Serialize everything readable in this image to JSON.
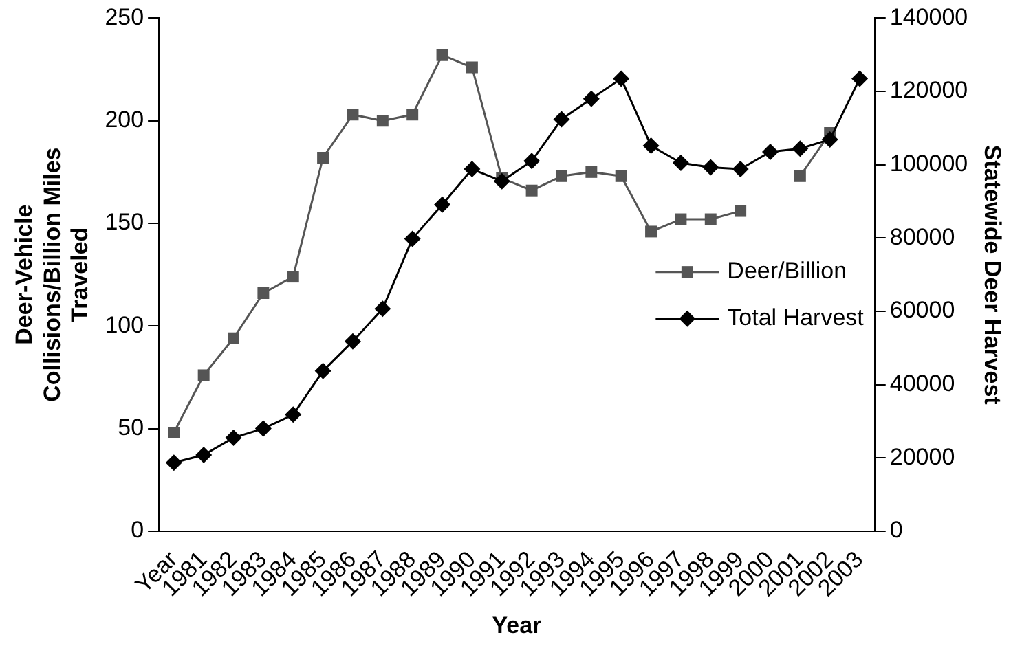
{
  "chart_data": {
    "type": "line",
    "xlabel": "Year",
    "ylabel": "Deer-Vehicle Collisions/Billion Miles Traveled",
    "y2label": "Statewide Deer Harvest",
    "categories": [
      "Year",
      "1981",
      "1982",
      "1983",
      "1984",
      "1985",
      "1986",
      "1987",
      "1988",
      "1989",
      "1990",
      "1991",
      "1992",
      "1993",
      "1994",
      "1995",
      "1996",
      "1997",
      "1998",
      "1999",
      "2000",
      "2001",
      "2002",
      "2003"
    ],
    "series": [
      {
        "name": "Deer/Billion",
        "color": "#555555",
        "marker": "square",
        "values": [
          48,
          76,
          94,
          116,
          124,
          182,
          203,
          200,
          203,
          232,
          226,
          172,
          166,
          173,
          175,
          173,
          146,
          152,
          152,
          156,
          null,
          173,
          194,
          null
        ]
      },
      {
        "name": "Total Harvest",
        "color": "#000000",
        "marker": "diamond",
        "axis": "y2",
        "values": [
          18700,
          20800,
          25500,
          28000,
          31800,
          43700,
          51800,
          60700,
          79800,
          89100,
          98800,
          95500,
          101000,
          112400,
          118000,
          123500,
          105200,
          100500,
          99300,
          98800,
          103500,
          104400,
          106900,
          123500
        ]
      }
    ],
    "ylim": [
      0,
      250
    ],
    "yticks": [
      0,
      50,
      100,
      150,
      200,
      250
    ],
    "y2lim": [
      0,
      140000
    ],
    "y2ticks": [
      0,
      20000,
      40000,
      60000,
      80000,
      100000,
      120000,
      140000
    ],
    "grid": false,
    "legend": "right"
  }
}
